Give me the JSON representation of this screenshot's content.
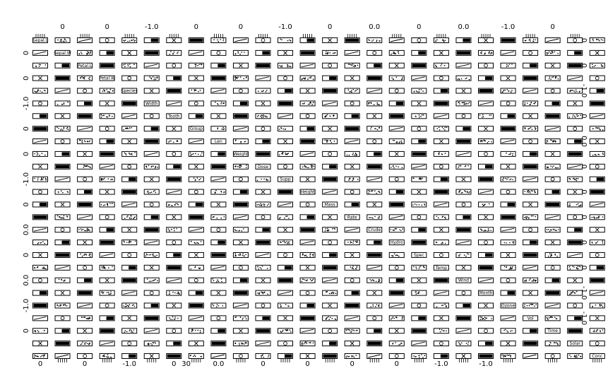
{
  "chart_data": {
    "type": "scatter",
    "subtype": "scatterplot-matrix",
    "title": "",
    "variables": [
      "Sepal.L",
      "Sepal.W",
      "Petal.L",
      "Petal.W",
      "Species",
      "Width",
      "Tooth",
      "Group",
      "Len",
      "Weight",
      "Dose",
      "Supp",
      "Height",
      "Mass",
      "Rate",
      "Crude",
      "Hydro",
      "Spec",
      "Temp",
      "Wind",
      "Month",
      "Ozone",
      "Vol",
      "Time",
      "Solar",
      "Conc"
    ],
    "top_ticks": [
      {
        "col": 1,
        "label": "0"
      },
      {
        "col": 3,
        "label": "0"
      },
      {
        "col": 5,
        "label": "-1.0"
      },
      {
        "col": 7,
        "label": "0"
      },
      {
        "col": 9,
        "label": "0"
      },
      {
        "col": 11,
        "label": "-1.0"
      },
      {
        "col": 13,
        "label": "0"
      },
      {
        "col": 15,
        "label": "0.0"
      },
      {
        "col": 17,
        "label": "0"
      },
      {
        "col": 19,
        "label": "0.0"
      },
      {
        "col": 21,
        "label": "-1.0"
      },
      {
        "col": 23,
        "label": "0"
      }
    ],
    "bottom_ticks": [
      {
        "col": 0,
        "label": "0"
      },
      {
        "col": 2,
        "label": "0"
      },
      {
        "col": 4,
        "label": "-1.0"
      },
      {
        "col": 6,
        "label": "0"
      },
      {
        "col": 6.55,
        "label": "30"
      },
      {
        "col": 8,
        "label": "0.0"
      },
      {
        "col": 10,
        "label": "0"
      },
      {
        "col": 12,
        "label": "0"
      },
      {
        "col": 14,
        "label": "0"
      },
      {
        "col": 16,
        "label": "0"
      },
      {
        "col": 18,
        "label": "-1.0"
      },
      {
        "col": 20,
        "label": "-1.0"
      }
    ],
    "left_ticks": [
      {
        "row": 1,
        "label": "0"
      },
      {
        "row": 3,
        "label": "0"
      },
      {
        "row": 5,
        "label": "-1.0"
      },
      {
        "row": 7,
        "label": "0"
      },
      {
        "row": 9,
        "label": "0"
      },
      {
        "row": 11,
        "label": "-1.0"
      },
      {
        "row": 13,
        "label": "0"
      },
      {
        "row": 15,
        "label": "0.0"
      },
      {
        "row": 17,
        "label": "0"
      },
      {
        "row": 19,
        "label": "0.0"
      },
      {
        "row": 21,
        "label": "-1.0"
      },
      {
        "row": 23,
        "label": "0"
      }
    ],
    "right_ticks": [
      {
        "row": 0,
        "label": "0"
      },
      {
        "row": 2,
        "label": "0"
      },
      {
        "row": 4,
        "label": "-1.0"
      },
      {
        "row": 6,
        "label": "0"
      },
      {
        "row": 8,
        "label": "0.0"
      },
      {
        "row": 10,
        "label": "0"
      },
      {
        "row": 12,
        "label": "0"
      },
      {
        "row": 14,
        "label": "0"
      },
      {
        "row": 16,
        "label": "0"
      },
      {
        "row": 18,
        "label": "0"
      },
      {
        "row": 20,
        "label": "-1.0"
      },
      {
        "row": 22,
        "label": "-1.0"
      }
    ],
    "grid": false,
    "legend": "none",
    "colors": {
      "background": "#ffffff",
      "ink": "#000000"
    }
  }
}
